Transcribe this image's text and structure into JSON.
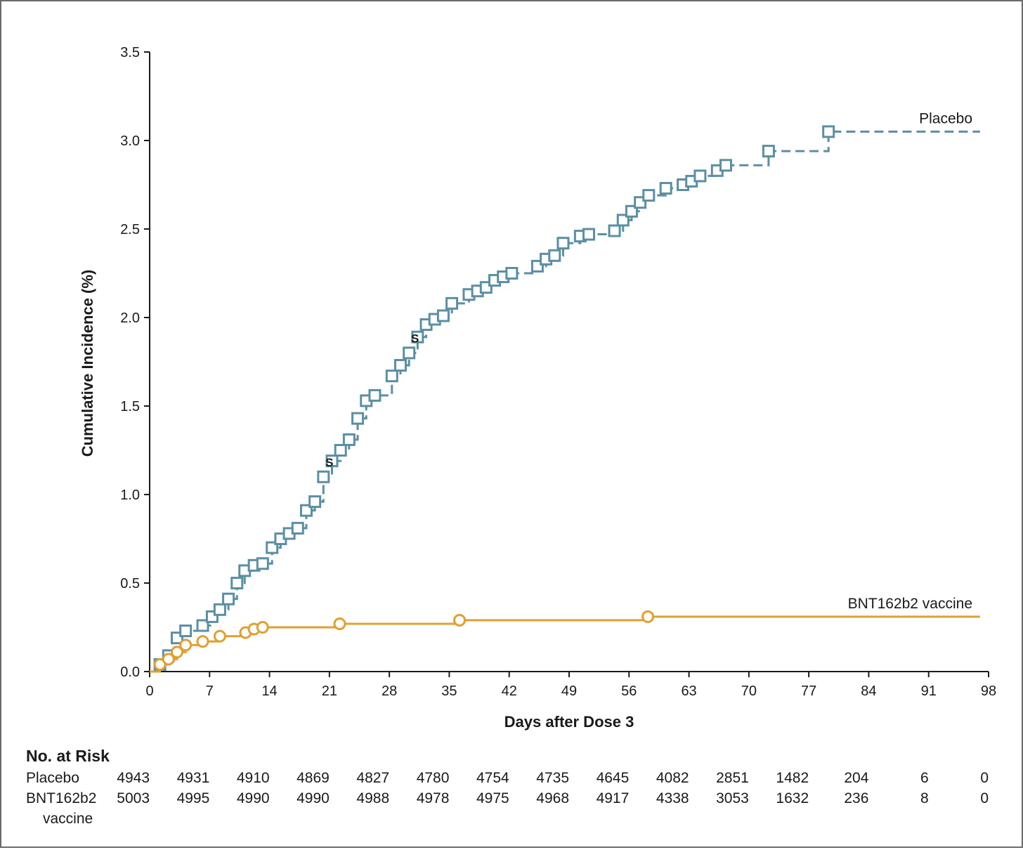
{
  "chart_data": {
    "type": "line",
    "xlabel": "Days after Dose 3",
    "ylabel": "Cumulative Incidence (%)",
    "xlim": [
      0,
      98
    ],
    "ylim": [
      0,
      3.5
    ],
    "x_ticks": [
      0,
      7,
      14,
      21,
      28,
      35,
      42,
      49,
      56,
      63,
      70,
      77,
      84,
      91,
      98
    ],
    "y_ticks": [
      "0.0",
      "0.5",
      "1.0",
      "1.5",
      "2.0",
      "2.5",
      "3.0",
      "3.5"
    ],
    "legend": "inline labels at right end of lines",
    "grid": false,
    "series": [
      {
        "name": "Placebo",
        "color": "#5b8fa3",
        "line_style": "dashed",
        "marker": "square",
        "x": [
          0,
          1.2,
          2.2,
          3.2,
          4.2,
          6.2,
          7.3,
          8.2,
          9.2,
          10.2,
          11.1,
          12.2,
          13.2,
          14.3,
          15.3,
          16.3,
          17.3,
          18.3,
          19.3,
          20.3,
          21.3,
          22.3,
          23.3,
          24.3,
          25.3,
          26.3,
          28.3,
          29.3,
          30.3,
          31.3,
          32.3,
          33.3,
          34.3,
          35.3,
          37.3,
          38.3,
          39.3,
          40.3,
          41.3,
          42.3,
          45.3,
          46.3,
          47.3,
          48.3,
          50.3,
          51.3,
          54.3,
          55.3,
          56.3,
          57.3,
          58.3,
          60.3,
          62.3,
          63.3,
          64.3,
          66.3,
          67.3,
          72.3,
          79.3,
          97
        ],
        "y": [
          0,
          0.04,
          0.09,
          0.19,
          0.23,
          0.26,
          0.31,
          0.35,
          0.41,
          0.5,
          0.57,
          0.6,
          0.61,
          0.7,
          0.75,
          0.78,
          0.81,
          0.91,
          0.96,
          1.1,
          1.19,
          1.25,
          1.31,
          1.43,
          1.53,
          1.56,
          1.67,
          1.73,
          1.8,
          1.89,
          1.96,
          1.99,
          2.01,
          2.08,
          2.13,
          2.15,
          2.17,
          2.21,
          2.23,
          2.25,
          2.29,
          2.33,
          2.35,
          2.42,
          2.46,
          2.47,
          2.49,
          2.55,
          2.6,
          2.65,
          2.69,
          2.73,
          2.75,
          2.77,
          2.8,
          2.83,
          2.86,
          2.94,
          3.05,
          3.05
        ]
      },
      {
        "name": "BNT162b2 vaccine",
        "color": "#e0a030",
        "line_style": "solid",
        "marker": "circle",
        "x": [
          0,
          1.2,
          2.2,
          3.2,
          4.2,
          6.2,
          8.2,
          11.2,
          12.2,
          13.2,
          22.2,
          36.2,
          58.2,
          97
        ],
        "y": [
          0,
          0.04,
          0.07,
          0.11,
          0.15,
          0.17,
          0.2,
          0.22,
          0.24,
          0.25,
          0.27,
          0.29,
          0.31,
          0.31
        ]
      }
    ],
    "annotations": [
      {
        "text": "S",
        "x": 21.0,
        "y": 1.19
      },
      {
        "text": "S",
        "x": 31.0,
        "y": 1.89
      }
    ]
  },
  "risk_table": {
    "title": "No. at Risk",
    "rows": [
      {
        "label_lines": [
          "Placebo"
        ],
        "values": [
          "4943",
          "4931",
          "4910",
          "4869",
          "4827",
          "4780",
          "4754",
          "4735",
          "4645",
          "4082",
          "2851",
          "1482",
          "204",
          "6",
          "0"
        ]
      },
      {
        "label_lines": [
          "BNT162b2",
          "vaccine"
        ],
        "values": [
          "5003",
          "4995",
          "4990",
          "4990",
          "4988",
          "4978",
          "4975",
          "4968",
          "4917",
          "4338",
          "3053",
          "1632",
          "236",
          "8",
          "0"
        ]
      }
    ]
  }
}
